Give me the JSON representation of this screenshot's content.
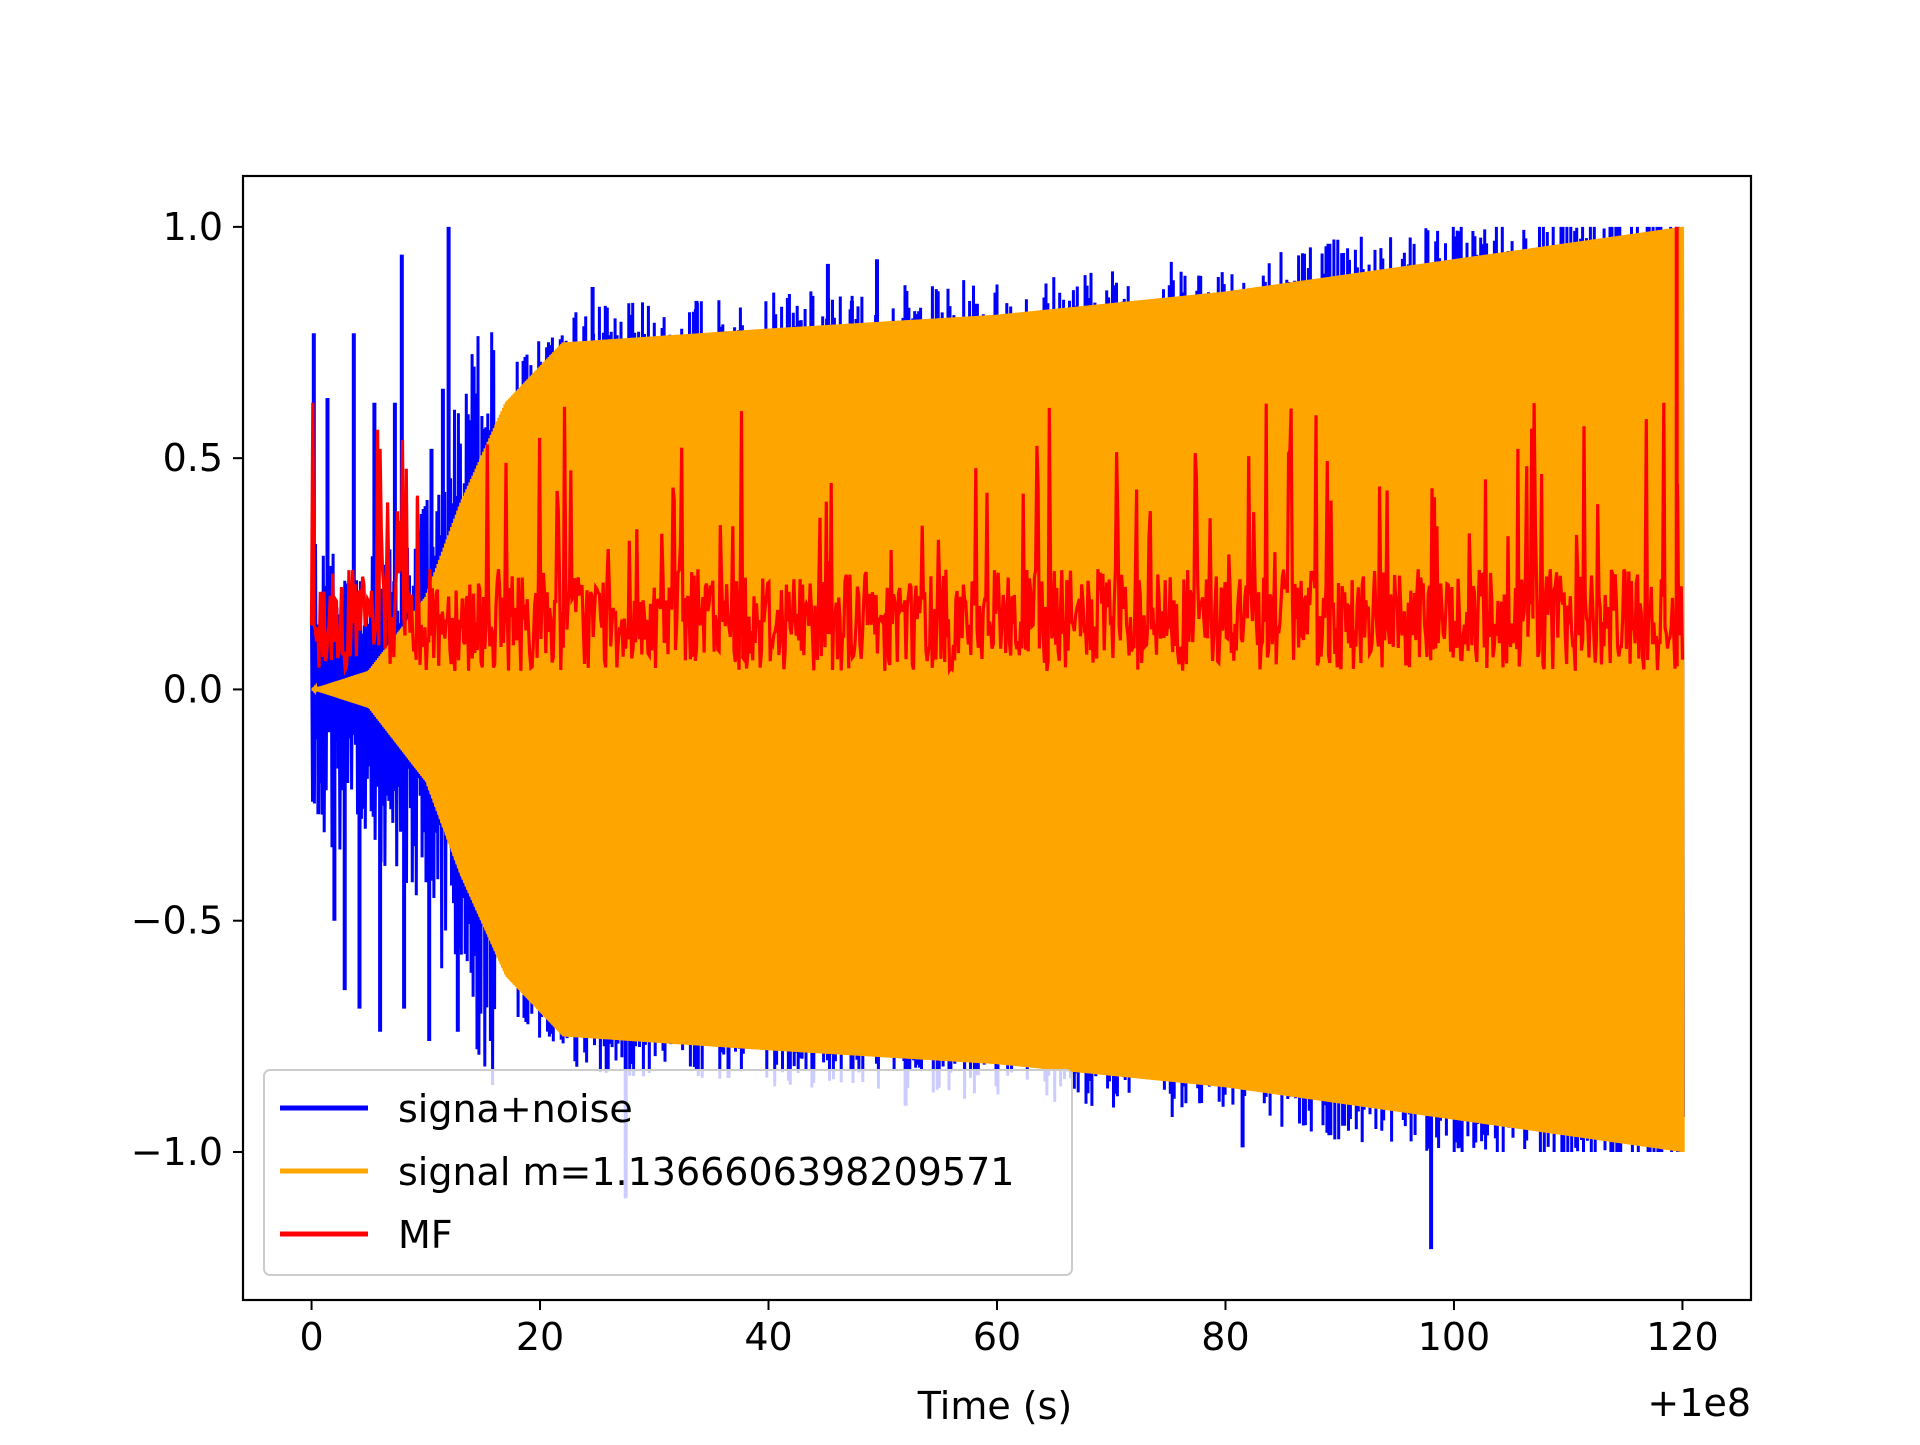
{
  "chart_data": {
    "type": "line",
    "title": "",
    "xlabel": "Time (s)",
    "ylabel": "",
    "x_offset_label": "+1e8",
    "xlim": [
      -6,
      126
    ],
    "ylim": [
      -1.32,
      1.11
    ],
    "xticks": [
      0,
      20,
      40,
      60,
      80,
      100,
      120
    ],
    "xtick_labels": [
      "0",
      "20",
      "40",
      "60",
      "80",
      "100",
      "120"
    ],
    "yticks": [
      1.0,
      0.5,
      0.0,
      -0.5,
      -1.0
    ],
    "ytick_labels": [
      "1.0",
      "0.5",
      "0.0",
      "−0.5",
      "−1.0"
    ],
    "grid": false,
    "legend_position": "lower-left",
    "series": [
      {
        "name": "signa+noise",
        "color": "#0000ff",
        "description": "noisy lines",
        "x_range": [
          0,
          120
        ],
        "y_range": [
          -1.21,
          1.0
        ],
        "spikes": [
          {
            "x": 0.2,
            "y": 0.77
          },
          {
            "x": 0.6,
            "y": -0.27
          },
          {
            "x": 1.4,
            "y": 0.63
          },
          {
            "x": 2.0,
            "y": -0.5
          },
          {
            "x": 3.7,
            "y": 0.77
          },
          {
            "x": 2.9,
            "y": -0.65
          },
          {
            "x": 5.5,
            "y": 0.62
          },
          {
            "x": 4.2,
            "y": -0.69
          },
          {
            "x": 7.3,
            "y": 0.62
          },
          {
            "x": 7.9,
            "y": 0.94
          },
          {
            "x": 6.0,
            "y": -0.74
          },
          {
            "x": 8.1,
            "y": -0.69
          },
          {
            "x": 10.5,
            "y": 0.52
          },
          {
            "x": 11.5,
            "y": 0.65
          },
          {
            "x": 12.0,
            "y": 1.0
          },
          {
            "x": 10.3,
            "y": -0.76
          },
          {
            "x": 12.8,
            "y": -0.74
          },
          {
            "x": 15.7,
            "y": -0.76
          },
          {
            "x": 24.6,
            "y": 0.87
          },
          {
            "x": 27.5,
            "y": -1.1
          },
          {
            "x": 33.7,
            "y": 0.84
          },
          {
            "x": 36.5,
            "y": -0.84
          },
          {
            "x": 45.2,
            "y": 0.92
          },
          {
            "x": 47.3,
            "y": 0.84
          },
          {
            "x": 49.5,
            "y": 0.93
          },
          {
            "x": 52.0,
            "y": -0.9
          },
          {
            "x": 81.5,
            "y": -0.99
          },
          {
            "x": 98.0,
            "y": -1.21
          }
        ]
      },
      {
        "name": "signal m=1.1366606398209571",
        "color": "#ffa500",
        "description": "chirp oscillating symmetrically about 0",
        "x_range": [
          0,
          120
        ],
        "envelope": [
          {
            "x": 0,
            "y": 0.0
          },
          {
            "x": 5,
            "y": 0.04
          },
          {
            "x": 10,
            "y": 0.2
          },
          {
            "x": 13,
            "y": 0.4
          },
          {
            "x": 17,
            "y": 0.62
          },
          {
            "x": 22,
            "y": 0.75
          },
          {
            "x": 40,
            "y": 0.78
          },
          {
            "x": 60,
            "y": 0.81
          },
          {
            "x": 80,
            "y": 0.86
          },
          {
            "x": 100,
            "y": 0.93
          },
          {
            "x": 120,
            "y": 1.0
          }
        ]
      },
      {
        "name": "MF",
        "color": "#ff0000",
        "description": "matched filter output, positive, fluctuating around 0.15",
        "x_range": [
          0,
          120
        ],
        "baseline": 0.15,
        "y_range": [
          0.01,
          1.0
        ],
        "peak": {
          "x": 119.5,
          "y": 1.0
        }
      }
    ]
  }
}
